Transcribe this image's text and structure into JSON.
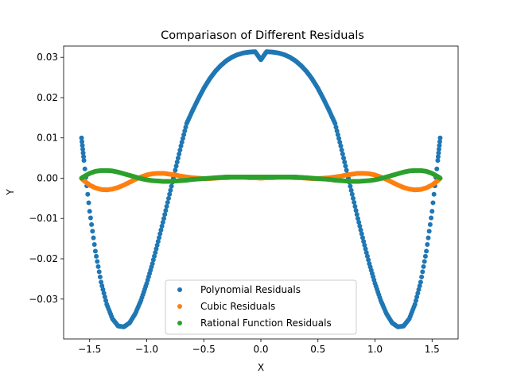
{
  "chart_data": {
    "type": "scatter",
    "title": "Compariason of Different Residuals",
    "xlabel": "X",
    "ylabel": "Y",
    "xlim": [
      -1.728,
      1.728
    ],
    "ylim": [
      -0.0399,
      0.0328
    ],
    "xticks": [
      {
        "value": -1.5,
        "label": "−1.5"
      },
      {
        "value": -1.0,
        "label": "−1.0"
      },
      {
        "value": -0.5,
        "label": "−0.5"
      },
      {
        "value": 0.0,
        "label": "0.0"
      },
      {
        "value": 0.5,
        "label": "0.5"
      },
      {
        "value": 1.0,
        "label": "1.0"
      },
      {
        "value": 1.5,
        "label": "1.5"
      }
    ],
    "yticks": [
      {
        "value": 0.03,
        "label": "0.03"
      },
      {
        "value": 0.02,
        "label": "0.02"
      },
      {
        "value": 0.01,
        "label": "0.01"
      },
      {
        "value": 0.0,
        "label": "0.00"
      },
      {
        "value": -0.01,
        "label": "−0.01"
      },
      {
        "value": -0.02,
        "label": "−0.02"
      },
      {
        "value": -0.03,
        "label": "−0.03"
      }
    ],
    "grid": false,
    "legend_position": "lower center",
    "series": [
      {
        "name": "Polynomial Residuals",
        "color": "#1f77b4",
        "x": [
          -1.5708,
          -1.55,
          -1.5,
          -1.45,
          -1.4,
          -1.35,
          -1.3,
          -1.25,
          -1.2,
          -1.15,
          -1.1,
          -1.05,
          -1.0,
          -0.95,
          -0.9,
          -0.85,
          -0.8,
          -0.75,
          -0.7,
          -0.65,
          -0.6,
          -0.55,
          -0.5,
          -0.45,
          -0.4,
          -0.35,
          -0.3,
          -0.25,
          -0.2,
          -0.15,
          -0.1,
          -0.05,
          0.0,
          0.05,
          0.1,
          0.15,
          0.2,
          0.25,
          0.3,
          0.35,
          0.4,
          0.45,
          0.5,
          0.55,
          0.6,
          0.65,
          0.7,
          0.75,
          0.8,
          0.85,
          0.9,
          0.95,
          1.0,
          1.05,
          1.1,
          1.15,
          1.2,
          1.25,
          1.3,
          1.35,
          1.4,
          1.45,
          1.5,
          1.55,
          1.5708
        ],
        "y": [
          0.01,
          0.0044,
          -0.0082,
          -0.0181,
          -0.0258,
          -0.0313,
          -0.0349,
          -0.0367,
          -0.0369,
          -0.0359,
          -0.0336,
          -0.0303,
          -0.0261,
          -0.0212,
          -0.0157,
          -0.01,
          -0.004,
          0.002,
          0.008,
          0.0136,
          0.0167,
          0.0196,
          0.0223,
          0.0246,
          0.0265,
          0.028,
          0.0292,
          0.0301,
          0.0307,
          0.0311,
          0.0313,
          0.0314,
          0.0294,
          0.0314,
          0.0313,
          0.0311,
          0.0307,
          0.0301,
          0.0292,
          0.028,
          0.0265,
          0.0246,
          0.0223,
          0.0196,
          0.0167,
          0.0136,
          0.008,
          0.002,
          -0.004,
          -0.01,
          -0.0157,
          -0.0212,
          -0.0261,
          -0.0303,
          -0.0336,
          -0.0359,
          -0.0369,
          -0.0367,
          -0.0349,
          -0.0313,
          -0.0258,
          -0.0181,
          -0.0082,
          0.0044,
          0.01
        ]
      },
      {
        "name": "Cubic Residuals",
        "color": "#ff7f0e",
        "x": [
          -1.5708,
          -1.55,
          -1.5,
          -1.45,
          -1.4,
          -1.35,
          -1.3,
          -1.25,
          -1.2,
          -1.15,
          -1.1,
          -1.05,
          -1.0,
          -0.95,
          -0.9,
          -0.85,
          -0.8,
          -0.75,
          -0.7,
          -0.65,
          -0.6,
          -0.55,
          -0.5,
          -0.45,
          -0.4,
          -0.35,
          -0.3,
          -0.25,
          -0.2,
          -0.15,
          -0.1,
          -0.05,
          0.0,
          0.05,
          0.1,
          0.15,
          0.2,
          0.25,
          0.3,
          0.35,
          0.4,
          0.45,
          0.5,
          0.55,
          0.6,
          0.65,
          0.7,
          0.75,
          0.8,
          0.85,
          0.9,
          0.95,
          1.0,
          1.05,
          1.1,
          1.15,
          1.2,
          1.25,
          1.3,
          1.35,
          1.4,
          1.45,
          1.5,
          1.55,
          1.5708
        ],
        "y": [
          0.0,
          -0.0006,
          -0.0017,
          -0.0024,
          -0.0028,
          -0.0029,
          -0.0027,
          -0.0023,
          -0.0017,
          -0.001,
          -0.0003,
          0.0003,
          0.0008,
          0.0011,
          0.0012,
          0.0012,
          0.001,
          0.0008,
          0.0005,
          0.0003,
          0.0001,
          0.0,
          -0.0001,
          -0.0001,
          0.0,
          0.0001,
          0.0001,
          0.0002,
          0.0002,
          0.0002,
          0.0001,
          0.0001,
          0.0,
          0.0001,
          0.0001,
          0.0002,
          0.0002,
          0.0002,
          0.0001,
          0.0001,
          0.0,
          -0.0001,
          -0.0001,
          0.0,
          0.0001,
          0.0003,
          0.0005,
          0.0008,
          0.001,
          0.0012,
          0.0012,
          0.0011,
          0.0008,
          0.0003,
          -0.0003,
          -0.001,
          -0.0017,
          -0.0023,
          -0.0027,
          -0.0029,
          -0.0028,
          -0.0024,
          -0.0017,
          -0.0006,
          0.0
        ]
      },
      {
        "name": "Rational Function Residuals",
        "color": "#2ca02c",
        "x": [
          -1.5708,
          -1.55,
          -1.5,
          -1.45,
          -1.4,
          -1.35,
          -1.3,
          -1.25,
          -1.2,
          -1.15,
          -1.1,
          -1.05,
          -1.0,
          -0.95,
          -0.9,
          -0.85,
          -0.8,
          -0.75,
          -0.7,
          -0.65,
          -0.6,
          -0.55,
          -0.5,
          -0.45,
          -0.4,
          -0.35,
          -0.3,
          -0.25,
          -0.2,
          -0.15,
          -0.1,
          -0.05,
          0.0,
          0.05,
          0.1,
          0.15,
          0.2,
          0.25,
          0.3,
          0.35,
          0.4,
          0.45,
          0.5,
          0.55,
          0.6,
          0.65,
          0.7,
          0.75,
          0.8,
          0.85,
          0.9,
          0.95,
          1.0,
          1.05,
          1.1,
          1.15,
          1.2,
          1.25,
          1.3,
          1.35,
          1.4,
          1.45,
          1.5,
          1.55,
          1.5708
        ],
        "y": [
          0.0,
          0.0004,
          0.0012,
          0.0017,
          0.0019,
          0.0019,
          0.0018,
          0.0015,
          0.0011,
          0.0007,
          0.0003,
          -0.0001,
          -0.0004,
          -0.0006,
          -0.0007,
          -0.0008,
          -0.0008,
          -0.0007,
          -0.0006,
          -0.0005,
          -0.0003,
          -0.0002,
          -0.0001,
          0.0,
          0.0001,
          0.0002,
          0.0003,
          0.0003,
          0.0003,
          0.0003,
          0.0003,
          0.0003,
          0.0003,
          0.0003,
          0.0003,
          0.0003,
          0.0003,
          0.0003,
          0.0003,
          0.0002,
          0.0001,
          0.0,
          -0.0001,
          -0.0002,
          -0.0003,
          -0.0005,
          -0.0006,
          -0.0007,
          -0.0008,
          -0.0008,
          -0.0007,
          -0.0006,
          -0.0004,
          -0.0001,
          0.0003,
          0.0007,
          0.0011,
          0.0015,
          0.0018,
          0.0019,
          0.0019,
          0.0017,
          0.0012,
          0.0004,
          0.0
        ]
      }
    ]
  }
}
